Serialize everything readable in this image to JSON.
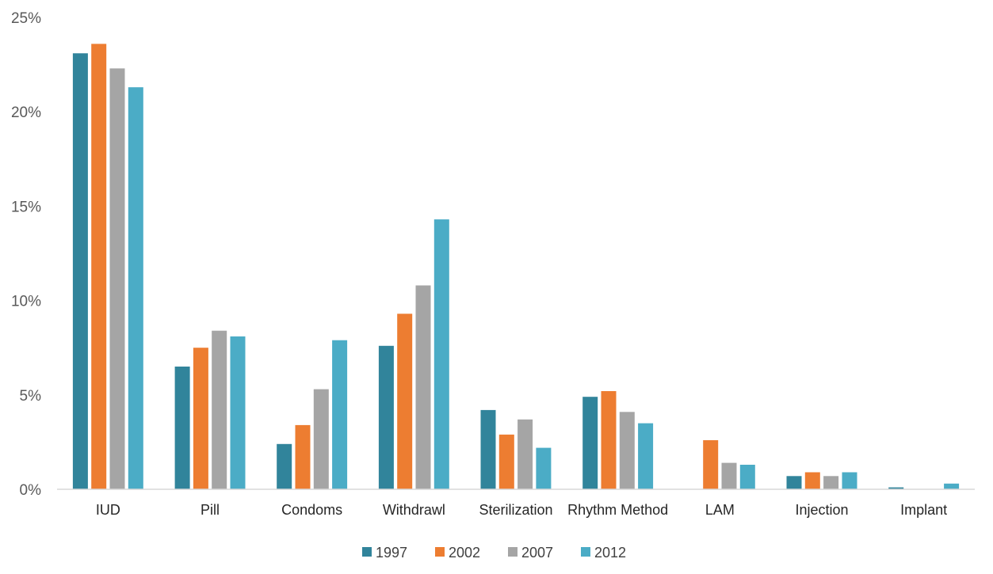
{
  "chart_data": {
    "type": "bar",
    "title": "",
    "xlabel": "",
    "ylabel": "",
    "ylim": [
      0,
      25
    ],
    "y_ticks": [
      0,
      5,
      10,
      15,
      20,
      25
    ],
    "y_tick_labels": [
      "0%",
      "5%",
      "10%",
      "15%",
      "20%",
      "25%"
    ],
    "grid": false,
    "legend_position": "bottom",
    "categories": [
      "IUD",
      "Pill",
      "Condoms",
      "Withdrawl",
      "Sterilization",
      "Rhythm Method",
      "LAM",
      "Injection",
      "Implant"
    ],
    "series": [
      {
        "name": "1997",
        "color": "#31849b",
        "values": [
          23.1,
          6.5,
          2.4,
          7.6,
          4.2,
          4.9,
          0,
          0.7,
          0.1
        ]
      },
      {
        "name": "2002",
        "color": "#ed7d31",
        "values": [
          23.6,
          7.5,
          3.4,
          9.3,
          2.9,
          5.2,
          2.6,
          0.9,
          0
        ]
      },
      {
        "name": "2007",
        "color": "#a5a5a5",
        "values": [
          22.3,
          8.4,
          5.3,
          10.8,
          3.7,
          4.1,
          1.4,
          0.7,
          0
        ]
      },
      {
        "name": "2012",
        "color": "#4bacc6",
        "values": [
          21.3,
          8.1,
          7.9,
          14.3,
          2.2,
          3.5,
          1.3,
          0.9,
          0.3
        ]
      }
    ]
  }
}
